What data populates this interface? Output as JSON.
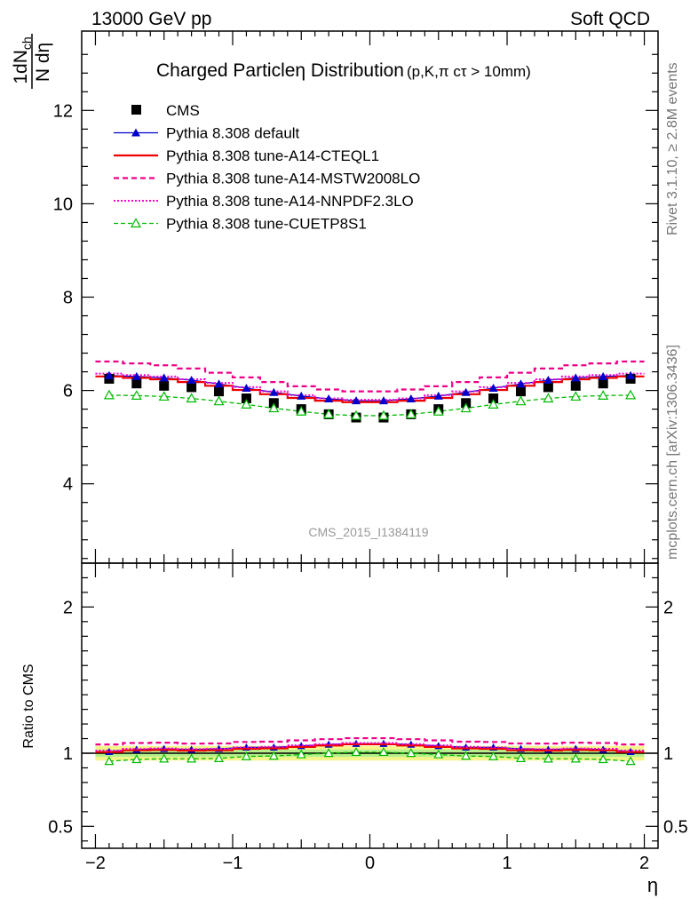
{
  "header": {
    "left": "13000 GeV pp",
    "right": "Soft QCD"
  },
  "side_labels": {
    "rivet": "Rivet 3.1.10, ≥ 2.8M events",
    "mcplots": "mcplots.cern.ch [arXiv:1306.3436]"
  },
  "watermark": "CMS_2015_I1384119",
  "colors": {
    "cms": "#000000",
    "default": "#0000cc",
    "cteql1": "#ee0000",
    "mstw": "#ee0088",
    "nnpdf": "#ff00cc",
    "cuetp": "#00bb00",
    "band_inner": "#b6f08a",
    "band_outer": "#f5f58c"
  },
  "chart_data": [
    {
      "type": "line",
      "panel": "main",
      "title": "Charged Particleη Distribution",
      "title_suffix": "(p,K,π cτ > 10mm)",
      "ylabel_num": "1dN",
      "ylabel_num_sub": "ch",
      "ylabel_den": "N dη",
      "xlim": [
        -2.1,
        2.1
      ],
      "ylim": [
        2.3,
        13.7
      ],
      "yticks": [
        4,
        6,
        8,
        10,
        12
      ],
      "x": [
        -1.9,
        -1.7,
        -1.5,
        -1.3,
        -1.1,
        -0.9,
        -0.7,
        -0.5,
        -0.3,
        -0.1,
        0.1,
        0.3,
        0.5,
        0.7,
        0.9,
        1.1,
        1.3,
        1.5,
        1.7,
        1.9
      ],
      "series": [
        {
          "name": "CMS",
          "key": "cms",
          "style": "marker-square",
          "values": [
            6.25,
            6.15,
            6.1,
            6.07,
            5.98,
            5.83,
            5.73,
            5.6,
            5.49,
            5.42,
            5.42,
            5.49,
            5.6,
            5.73,
            5.83,
            5.98,
            6.07,
            6.1,
            6.15,
            6.25
          ]
        },
        {
          "name": "Pythia 8.308 default",
          "key": "default",
          "style": "solid-triangle",
          "values": [
            6.32,
            6.3,
            6.27,
            6.22,
            6.14,
            6.05,
            5.96,
            5.88,
            5.82,
            5.78,
            5.78,
            5.82,
            5.88,
            5.96,
            6.05,
            6.14,
            6.22,
            6.27,
            6.3,
            6.32
          ]
        },
        {
          "name": "Pythia 8.308 tune-A14-CTEQL1",
          "key": "cteql1",
          "style": "solid-thick",
          "values": [
            6.3,
            6.27,
            6.24,
            6.18,
            6.1,
            6.01,
            5.92,
            5.84,
            5.78,
            5.75,
            5.75,
            5.78,
            5.84,
            5.92,
            6.01,
            6.1,
            6.18,
            6.24,
            6.27,
            6.3
          ]
        },
        {
          "name": "Pythia 8.308 tune-A14-MSTW2008LO",
          "key": "mstw",
          "style": "dashed",
          "values": [
            6.62,
            6.58,
            6.54,
            6.47,
            6.38,
            6.28,
            6.18,
            6.09,
            6.02,
            5.98,
            5.98,
            6.02,
            6.09,
            6.18,
            6.28,
            6.38,
            6.47,
            6.54,
            6.58,
            6.62
          ]
        },
        {
          "name": "Pythia 8.308 tune-A14-NNPDF2.3LO",
          "key": "nnpdf",
          "style": "dotted",
          "values": [
            6.36,
            6.33,
            6.3,
            6.24,
            6.16,
            6.07,
            5.98,
            5.9,
            5.83,
            5.8,
            5.8,
            5.83,
            5.9,
            5.98,
            6.07,
            6.16,
            6.24,
            6.3,
            6.33,
            6.36
          ]
        },
        {
          "name": "Pythia 8.308 tune-CUETP8S1",
          "key": "cuetp",
          "style": "dashed-open-triangle",
          "values": [
            5.9,
            5.89,
            5.87,
            5.83,
            5.77,
            5.7,
            5.62,
            5.55,
            5.49,
            5.46,
            5.46,
            5.49,
            5.55,
            5.62,
            5.7,
            5.77,
            5.83,
            5.87,
            5.89,
            5.9
          ]
        }
      ]
    },
    {
      "type": "line",
      "panel": "ratio",
      "ylabel": "Ratio to CMS",
      "xlabel": "η",
      "xlim": [
        -2.1,
        2.1
      ],
      "ylim": [
        0.35,
        2.3
      ],
      "yticks": [
        0.5,
        1,
        2
      ],
      "ytick_labels": [
        "0.5",
        "1",
        "2"
      ],
      "xticks": [
        -2,
        -1,
        0,
        1,
        2
      ],
      "xtick_labels": [
        "−2",
        "−1",
        "0",
        "1",
        "2"
      ],
      "band_inner": 0.025,
      "band_outer": 0.05,
      "x": [
        -1.9,
        -1.7,
        -1.5,
        -1.3,
        -1.1,
        -0.9,
        -0.7,
        -0.5,
        -0.3,
        -0.1,
        0.1,
        0.3,
        0.5,
        0.7,
        0.9,
        1.1,
        1.3,
        1.5,
        1.7,
        1.9
      ],
      "series": [
        {
          "name": "Pythia 8.308 default",
          "key": "default",
          "values": [
            1.01,
            1.025,
            1.03,
            1.025,
            1.03,
            1.04,
            1.04,
            1.05,
            1.06,
            1.065,
            1.065,
            1.06,
            1.05,
            1.04,
            1.04,
            1.03,
            1.025,
            1.03,
            1.025,
            1.01
          ]
        },
        {
          "name": "Pythia 8.308 tune-A14-CTEQL1",
          "key": "cteql1",
          "values": [
            1.008,
            1.02,
            1.023,
            1.018,
            1.02,
            1.03,
            1.033,
            1.043,
            1.053,
            1.061,
            1.061,
            1.053,
            1.043,
            1.033,
            1.03,
            1.02,
            1.018,
            1.023,
            1.02,
            1.008
          ]
        },
        {
          "name": "Pythia 8.308 tune-A14-MSTW2008LO",
          "key": "mstw",
          "values": [
            1.06,
            1.07,
            1.072,
            1.066,
            1.067,
            1.077,
            1.079,
            1.088,
            1.096,
            1.103,
            1.103,
            1.096,
            1.088,
            1.079,
            1.077,
            1.067,
            1.066,
            1.072,
            1.07,
            1.06
          ]
        },
        {
          "name": "Pythia 8.308 tune-A14-NNPDF2.3LO",
          "key": "nnpdf",
          "values": [
            1.018,
            1.03,
            1.033,
            1.028,
            1.03,
            1.04,
            1.044,
            1.054,
            1.062,
            1.07,
            1.07,
            1.062,
            1.054,
            1.044,
            1.04,
            1.03,
            1.028,
            1.033,
            1.03,
            1.018
          ]
        },
        {
          "name": "Pythia 8.308 tune-CUETP8S1",
          "key": "cuetp",
          "values": [
            0.945,
            0.958,
            0.962,
            0.962,
            0.965,
            0.978,
            0.981,
            0.991,
            1.0,
            1.007,
            1.007,
            1.0,
            0.991,
            0.981,
            0.978,
            0.965,
            0.962,
            0.962,
            0.958,
            0.945
          ]
        }
      ]
    }
  ]
}
